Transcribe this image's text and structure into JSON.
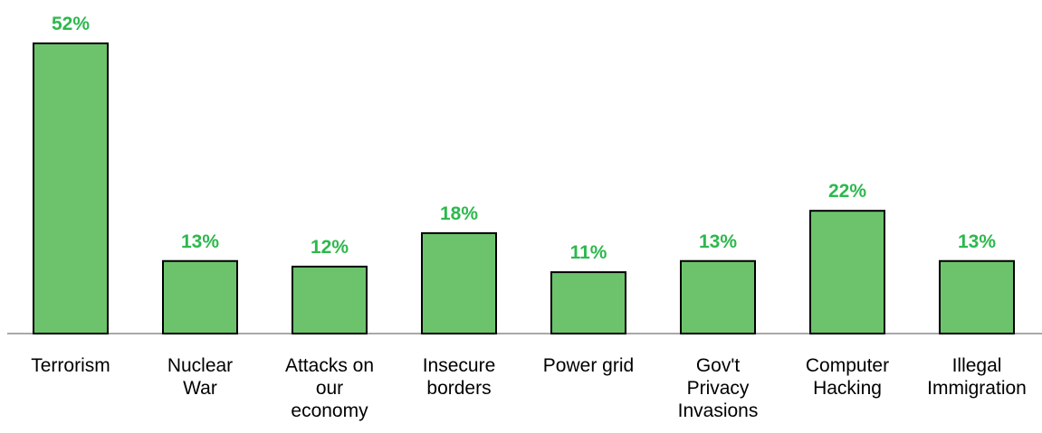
{
  "colors": {
    "bar_fill": "#6cc36c",
    "label_color": "#2db84d",
    "bar_outline": "#000000",
    "axis": "#8c8c8c"
  },
  "chart_data": {
    "type": "bar",
    "title": "",
    "xlabel": "",
    "ylabel": "",
    "ylim": [
      0,
      55
    ],
    "grid": false,
    "legend": "none",
    "categories": [
      [
        "Terrorism"
      ],
      [
        "Nuclear",
        "War"
      ],
      [
        "Attacks on",
        "our",
        "economy"
      ],
      [
        "Insecure",
        "borders"
      ],
      [
        "Power grid"
      ],
      [
        "Gov't",
        "Privacy",
        "Invasions"
      ],
      [
        "Computer",
        "Hacking"
      ],
      [
        "Illegal",
        "Immigration"
      ]
    ],
    "values": [
      52,
      13,
      12,
      18,
      11,
      13,
      22,
      13
    ],
    "value_labels": [
      "52%",
      "13%",
      "12%",
      "18%",
      "11%",
      "13%",
      "22%",
      "13%"
    ]
  }
}
